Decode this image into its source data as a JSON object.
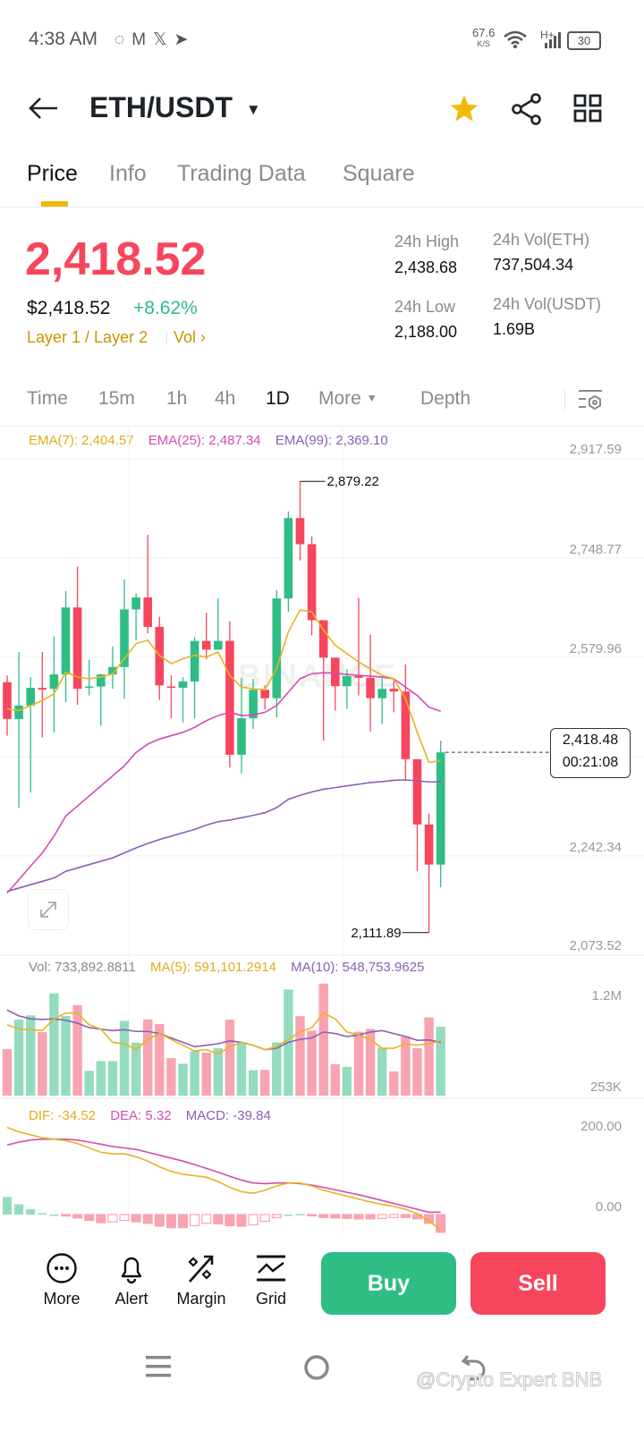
{
  "status_bar": {
    "time": "4:38 AM",
    "net_speed": "67.6",
    "net_unit": "K/S",
    "network": "H+",
    "battery": "30"
  },
  "header": {
    "pair": "ETH/USDT"
  },
  "tabs": [
    {
      "label": "Price"
    },
    {
      "label": "Info"
    },
    {
      "label": "Trading Data"
    },
    {
      "label": "Square"
    }
  ],
  "ticker": {
    "last_price": "2,418.52",
    "usd_price": "$2,418.52",
    "change": "+8.62%",
    "tags": "Layer 1 / Layer 2",
    "vol_link": "Vol",
    "stats": [
      {
        "label": "24h High",
        "value": "2,438.68"
      },
      {
        "label": "24h Vol(ETH)",
        "value": "737,504.34"
      },
      {
        "label": "24h Low",
        "value": "2,188.00"
      },
      {
        "label": "24h Vol(USDT)",
        "value": "1.69B"
      }
    ]
  },
  "intervals": [
    {
      "label": "Time"
    },
    {
      "label": "15m"
    },
    {
      "label": "1h"
    },
    {
      "label": "4h"
    },
    {
      "label": "1D"
    },
    {
      "label": "More"
    },
    {
      "label": "Depth"
    }
  ],
  "colors": {
    "up": "#2EBD85",
    "down": "#F6465D",
    "ema7": "#E8B321",
    "ema25": "#D24BB5",
    "ema99": "#8A5FB5",
    "gold": "#C99400",
    "up_light": "#93DCBF",
    "down_light": "#F8A4B0"
  },
  "chart_data": {
    "type": "candlestick",
    "legend": {
      "ema7": "EMA(7): 2,404.57",
      "ema25": "EMA(25): 2,487.34",
      "ema99": "EMA(99): 2,369.10"
    },
    "y_ticks": [
      "2,917.59",
      "2,748.77",
      "2,579.96",
      "2,242.34",
      "2,073.52"
    ],
    "ylim": [
      2073.52,
      2917.59
    ],
    "high_label": "2,879.22",
    "low_label": "2,111.89",
    "current_price": "2,418.48",
    "countdown": "00:21:08",
    "watermark": "BINANCE",
    "candles": [
      [
        2537.8,
        2549.2,
        2446.8,
        2475.2
      ],
      [
        2475.2,
        2589.1,
        2324.4,
        2498.0
      ],
      [
        2498.0,
        2546.4,
        2350.0,
        2528.2
      ],
      [
        2528.2,
        2589.1,
        2443.9,
        2525.3
      ],
      [
        2526.5,
        2615.8,
        2452.5,
        2550.9
      ],
      [
        2550.9,
        2692.7,
        2503.7,
        2664.8
      ],
      [
        2664.8,
        2734.3,
        2499.1,
        2526.5
      ],
      [
        2528.2,
        2576.0,
        2515.1,
        2530.4
      ],
      [
        2530.4,
        2552.1,
        2463.8,
        2550.9
      ],
      [
        2550.9,
        2598.8,
        2526.5,
        2563.5
      ],
      [
        2563.5,
        2712.6,
        2509.4,
        2661.4
      ],
      [
        2661.4,
        2688.7,
        2609.0,
        2681.9
      ],
      [
        2681.9,
        2788.3,
        2620.4,
        2631.8
      ],
      [
        2631.8,
        2648.9,
        2507.7,
        2532.2
      ],
      [
        2530.4,
        2549.2,
        2476.4,
        2528.2
      ],
      [
        2528.2,
        2546.4,
        2469.5,
        2539.0
      ],
      [
        2539.0,
        2614.7,
        2476.4,
        2607.9
      ],
      [
        2607.9,
        2655.7,
        2576.6,
        2593.1
      ],
      [
        2593.1,
        2680.2,
        2593.1,
        2607.9
      ],
      [
        2607.9,
        2641.5,
        2392.7,
        2414.3
      ],
      [
        2414.3,
        2544.7,
        2382.4,
        2476.4
      ],
      [
        2476.4,
        2543.5,
        2458.1,
        2524.8
      ],
      [
        2524.8,
        2532.2,
        2491.2,
        2510.5
      ],
      [
        2510.5,
        2694.4,
        2478.1,
        2680.2
      ],
      [
        2680.2,
        2828.2,
        2657.4,
        2816.8
      ],
      [
        2816.8,
        2879.22,
        2744.5,
        2772.4
      ],
      [
        2772.4,
        2785.5,
        2617.5,
        2643.2
      ],
      [
        2643.2,
        2643.2,
        2438.2,
        2579.4
      ],
      [
        2579.4,
        2579.4,
        2489.5,
        2531.0
      ],
      [
        2531.0,
        2559.5,
        2492.3,
        2548.1
      ],
      [
        2548.1,
        2681.3,
        2515.1,
        2545.2
      ],
      [
        2545.2,
        2618.7,
        2453.6,
        2510.5
      ],
      [
        2510.5,
        2546.4,
        2466.7,
        2526.5
      ],
      [
        2526.5,
        2543.5,
        2486.6,
        2521.9
      ],
      [
        2521.9,
        2568.0,
        2369.9,
        2406.9
      ],
      [
        2406.9,
        2406.9,
        2216.2,
        2295.9
      ],
      [
        2295.9,
        2314.1,
        2111.89,
        2227.6
      ],
      [
        2227.6,
        2438.2,
        2188.9,
        2418.48
      ]
    ],
    "ema7": [
      2492.3,
      2489.5,
      2498.0,
      2506.5,
      2517.9,
      2555.0,
      2546.4,
      2543.5,
      2546.4,
      2552.1,
      2577.7,
      2603.3,
      2609.0,
      2583.4,
      2569.2,
      2577.7,
      2583.4,
      2580.6,
      2589.1,
      2549.2,
      2529.3,
      2526.5,
      2524.8,
      2560.6,
      2623.3,
      2660.3,
      2657.4,
      2626.1,
      2600.5,
      2586.3,
      2572.0,
      2560.6,
      2549.2,
      2543.5,
      2509.4,
      2452.5,
      2401.2,
      2404.3
    ],
    "ema25": [
      2179.2,
      2202.0,
      2224.8,
      2247.5,
      2276.0,
      2310.1,
      2327.2,
      2344.3,
      2361.4,
      2378.5,
      2395.5,
      2418.3,
      2432.5,
      2441.1,
      2446.8,
      2452.5,
      2461.0,
      2472.4,
      2481.0,
      2486.6,
      2481.0,
      2482.1,
      2486.6,
      2498.0,
      2520.8,
      2543.5,
      2552.1,
      2553.8,
      2553.2,
      2550.9,
      2549.2,
      2548.1,
      2546.4,
      2543.5,
      2529.3,
      2515.1,
      2495.2,
      2488.3
    ],
    "ema99": [
      2182.0,
      2187.7,
      2193.4,
      2199.1,
      2204.8,
      2216.2,
      2221.9,
      2227.6,
      2233.3,
      2239.0,
      2247.5,
      2256.0,
      2263.5,
      2270.3,
      2276.0,
      2281.7,
      2287.4,
      2294.8,
      2300.5,
      2303.3,
      2307.3,
      2311.3,
      2315.8,
      2324.4,
      2338.6,
      2345.4,
      2351.1,
      2355.7,
      2358.5,
      2361.4,
      2364.2,
      2367.1,
      2368.7,
      2371.0,
      2371.6,
      2369.9,
      2368.2,
      2368.2
    ]
  },
  "volume_data": {
    "legend": {
      "vol": "Vol: 733,892.8811",
      "ma5": "MA(5): 591,101.2914",
      "ma10": "MA(10): 548,753.9625"
    },
    "y_ticks": [
      "1.2M",
      "253K"
    ],
    "unit": "K",
    "values": [
      628,
      936,
      982,
      806,
      1212,
      976,
      1089,
      401,
      502,
      502,
      923,
      696,
      939,
      890,
      533,
      474,
      604,
      591,
      637,
      936,
      699,
      407,
      410,
      699,
      1252,
      973,
      822,
      1314,
      471,
      441,
      810,
      840,
      644,
      394,
      760,
      637,
      960,
      862
    ],
    "ma5": [
      883,
      837,
      831,
      822,
      945,
      1006,
      1006,
      883,
      837,
      699,
      684,
      622,
      730,
      791,
      730,
      668,
      607,
      622,
      576,
      653,
      699,
      668,
      622,
      653,
      730,
      807,
      853,
      1006,
      945,
      807,
      776,
      730,
      637,
      637,
      684,
      668,
      684,
      714
    ],
    "ma10": [
      1037,
      976,
      945,
      939,
      945,
      930,
      899,
      853,
      837,
      822,
      831,
      813,
      813,
      791,
      745,
      699,
      653,
      668,
      684,
      714,
      699,
      668,
      622,
      637,
      699,
      730,
      745,
      807,
      791,
      760,
      776,
      807,
      822,
      791,
      760,
      720,
      723,
      699
    ]
  },
  "macd_data": {
    "legend": {
      "dif": "DIF: -34.52",
      "dea": "DEA: 5.32",
      "macd": "MACD: -39.84"
    },
    "y_ticks": [
      "200.00",
      "0.00"
    ],
    "dif": [
      194.7,
      184.9,
      178.4,
      171.8,
      168.6,
      165.3,
      158.8,
      149.0,
      139.2,
      135.9,
      135.9,
      129.4,
      119.6,
      106.5,
      96.7,
      90.2,
      86.9,
      83.6,
      73.8,
      60.8,
      51.0,
      47.7,
      54.2,
      64.0,
      70.6,
      70.6,
      64.0,
      54.2,
      47.7,
      41.2,
      34.6,
      28.1,
      22.9,
      18.3,
      11.8,
      2.0,
      -14.4,
      -34.5
    ],
    "dea": [
      155.5,
      162.0,
      166.6,
      168.6,
      168.6,
      168.6,
      166.6,
      162.0,
      157.4,
      152.2,
      149.0,
      145.7,
      139.2,
      132.6,
      126.1,
      119.6,
      111.7,
      103.2,
      94.7,
      85.6,
      77.1,
      70.6,
      69.2,
      70.6,
      70.6,
      69.2,
      66.0,
      60.8,
      55.5,
      49.7,
      44.4,
      37.9,
      31.4,
      24.8,
      18.3,
      11.8,
      5.2,
      5.32
    ]
  },
  "toolbar": {
    "items": [
      {
        "label": "More"
      },
      {
        "label": "Alert"
      },
      {
        "label": "Margin"
      },
      {
        "label": "Grid"
      }
    ],
    "buy": "Buy",
    "sell": "Sell"
  },
  "watermark": "@Crypto Expert BNB"
}
